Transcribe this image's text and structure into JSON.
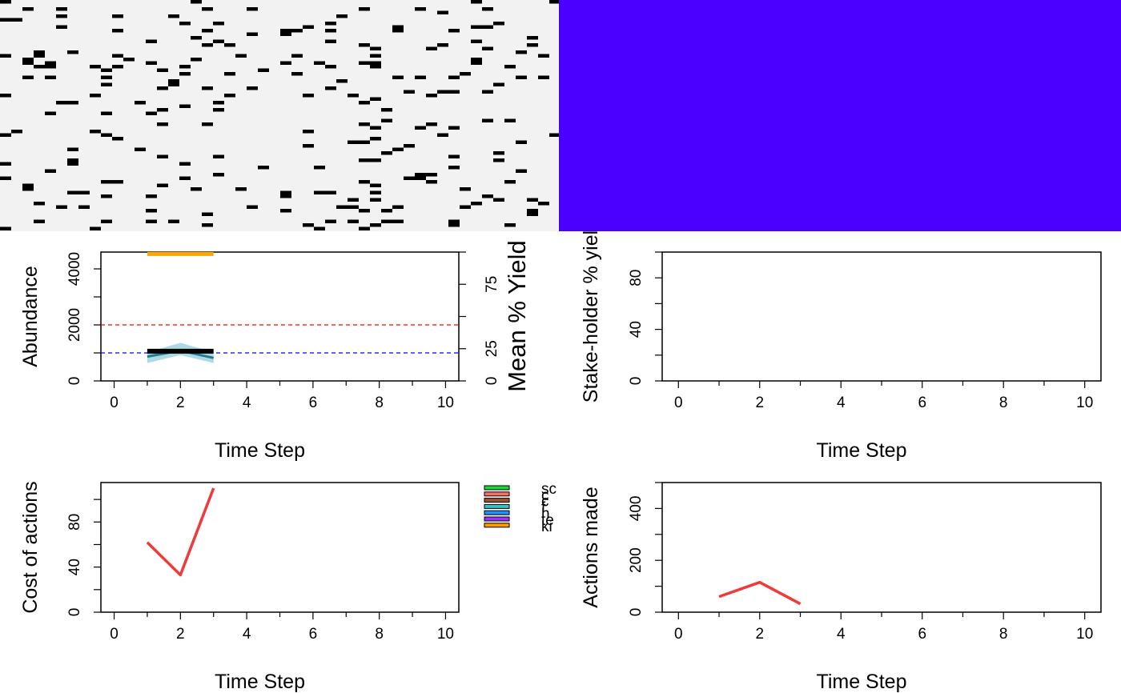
{
  "colors": {
    "landscape_bg": "#f2f2f2",
    "landscape_cell": "#000000",
    "cost_map_bg": "#4b00ff",
    "target_line": "#ff0000",
    "lower_line": "#0000ff",
    "abundance_band": "#add8e6",
    "abundance_line": "#000000",
    "yield_line": "#ffa500",
    "series_red": "#f03a3a"
  },
  "chart_data": [
    {
      "type": "heatmap",
      "panel": "landscape",
      "density": 0.07
    },
    {
      "type": "heatmap",
      "panel": "cost-map",
      "fill": "#4b00ff"
    },
    {
      "type": "line",
      "panel": "abundance",
      "xlabel": "Time Step",
      "ylabel": "Abundance",
      "y2label": "Mean % Yield",
      "xlim": [
        -0.4,
        10.4
      ],
      "ylim": [
        0,
        4600
      ],
      "y2lim": [
        0,
        100
      ],
      "xticks": [
        "0",
        "2",
        "4",
        "6",
        "8",
        "10"
      ],
      "yticks": [
        "0",
        "2000",
        "4000"
      ],
      "y2ticks": [
        "0",
        "25",
        "75"
      ],
      "target_line": 2000,
      "lower_line": 1000,
      "band": {
        "x": [
          1,
          2,
          3
        ],
        "lower": [
          640,
          920,
          640
        ],
        "upper": [
          1020,
          1360,
          1020
        ]
      },
      "series": [
        {
          "x": [
            1,
            2,
            3
          ],
          "values": [
            870,
            1080,
            820
          ]
        },
        {
          "x": [
            1,
            2,
            3
          ],
          "values": [
            1060,
            1060,
            1060
          ]
        },
        {
          "x": [
            1,
            2,
            3
          ],
          "values": [
            98.5,
            98.5,
            98.5
          ],
          "axis": "right"
        }
      ]
    },
    {
      "type": "line",
      "panel": "stakeholder-yield",
      "xlabel": "Time Step",
      "ylabel": "Stake-holder % yiel",
      "xlim": [
        -0.4,
        10.4
      ],
      "ylim": [
        0,
        100
      ],
      "xticks": [
        "0",
        "2",
        "4",
        "6",
        "8",
        "10"
      ],
      "yticks": [
        "0",
        "40",
        "80"
      ],
      "series": []
    },
    {
      "type": "line",
      "panel": "cost",
      "xlabel": "Time Step",
      "ylabel": "Cost of actions",
      "xlim": [
        -0.4,
        10.4
      ],
      "ylim": [
        0,
        115
      ],
      "xticks": [
        "0",
        "2",
        "4",
        "6",
        "8",
        "10"
      ],
      "yticks": [
        "0",
        "40",
        "80"
      ],
      "series": [
        {
          "x": [
            1,
            2,
            3
          ],
          "values": [
            62,
            33,
            110
          ]
        }
      ],
      "legend": [
        {
          "name": "sc",
          "color": "#1fd43a"
        },
        {
          "name": "c",
          "color": "#ff6a6a"
        },
        {
          "name": "c",
          "color": "#a0522d"
        },
        {
          "name": "f",
          "color": "#2ec4c4"
        },
        {
          "name": "h",
          "color": "#1e90ff"
        },
        {
          "name": "te",
          "color": "#9933ff"
        },
        {
          "name": "ki",
          "color": "#ff9900"
        }
      ]
    },
    {
      "type": "line",
      "panel": "actions",
      "xlabel": "Time Step",
      "ylabel": "Actions made",
      "xlim": [
        -0.4,
        10.4
      ],
      "ylim": [
        0,
        500
      ],
      "xticks": [
        "0",
        "2",
        "4",
        "6",
        "8",
        "10"
      ],
      "yticks": [
        "0",
        "200",
        "400"
      ],
      "series": [
        {
          "x": [
            1,
            2,
            3
          ],
          "values": [
            60,
            115,
            32
          ]
        }
      ]
    }
  ]
}
